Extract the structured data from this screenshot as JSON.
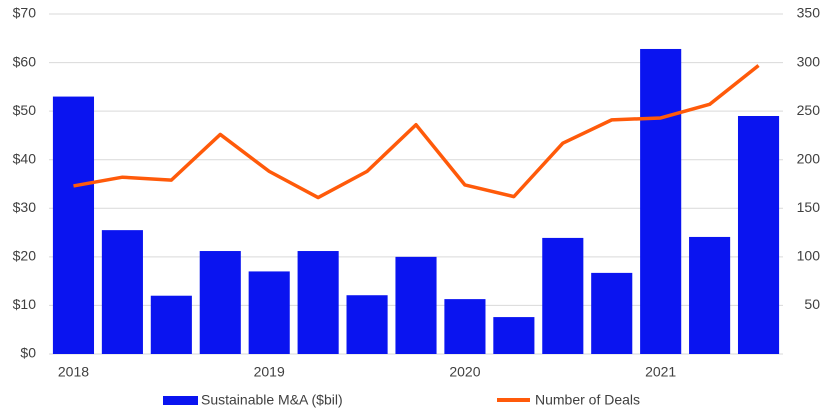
{
  "chart_data": {
    "type": "bar-line",
    "categories": [
      "2018",
      null,
      null,
      null,
      "2019",
      null,
      null,
      null,
      "2020",
      null,
      null,
      null,
      "2021",
      null,
      null
    ],
    "series": [
      {
        "name": "Sustainable M&A ($bil)",
        "type": "bar",
        "color": "#0a14f0",
        "axis": "y",
        "values": [
          53,
          25.5,
          12,
          21.2,
          17,
          21.2,
          12.1,
          20,
          11.3,
          7.6,
          23.9,
          16.7,
          62.8,
          24.1,
          49
        ]
      },
      {
        "name": "Number of Deals",
        "type": "line",
        "color": "#ff5a0a",
        "axis": "y2",
        "values": [
          173,
          182,
          179,
          226,
          188,
          161,
          188,
          236,
          174,
          162,
          217,
          241,
          243,
          257,
          297
        ]
      }
    ],
    "ylim": [
      0,
      70
    ],
    "yticks": [
      {
        "value": 0,
        "label": "$0"
      },
      {
        "value": 10,
        "label": "$10"
      },
      {
        "value": 20,
        "label": "$20"
      },
      {
        "value": 30,
        "label": "$30"
      },
      {
        "value": 40,
        "label": "$40"
      },
      {
        "value": 50,
        "label": "$50"
      },
      {
        "value": 60,
        "label": "$60"
      },
      {
        "value": 70,
        "label": "$70"
      }
    ],
    "y2lim": [
      0,
      350
    ],
    "y2ticks": [
      50,
      100,
      150,
      200,
      250,
      300,
      350
    ],
    "grid": true,
    "legend": "bottom"
  }
}
